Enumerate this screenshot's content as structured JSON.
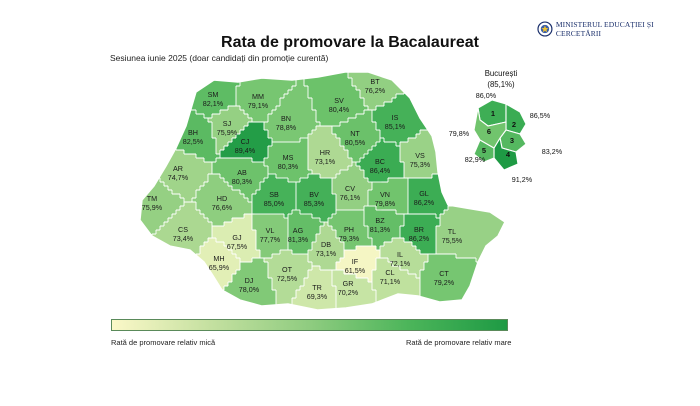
{
  "title": "Rata de promovare la Bacalaureat",
  "subtitle": "Sesiunea iunie 2025 (doar candidați din promoție curentă)",
  "logo": {
    "text": "MINISTERUL EDUCAȚIEI ȘI CERCETĂRII",
    "icon": "ministry-crest-icon"
  },
  "legend": {
    "low_label": "Rată de promovare relativ mică",
    "high_label": "Rată de promovare relativ mare",
    "low_color": "#fbf8c8",
    "high_color": "#1e9a44"
  },
  "counties": [
    {
      "code": "SM",
      "value": "82,1%"
    },
    {
      "code": "MM",
      "value": "79,1%"
    },
    {
      "code": "BT",
      "value": "76,2%"
    },
    {
      "code": "SV",
      "value": "80,4%"
    },
    {
      "code": "SJ",
      "value": "75,9%"
    },
    {
      "code": "BN",
      "value": "78,8%"
    },
    {
      "code": "IS",
      "value": "85,1%"
    },
    {
      "code": "BH",
      "value": "82,5%"
    },
    {
      "code": "CJ",
      "value": "89,4%"
    },
    {
      "code": "NT",
      "value": "80,5%"
    },
    {
      "code": "MS",
      "value": "80,3%"
    },
    {
      "code": "HR",
      "value": "73,1%"
    },
    {
      "code": "BC",
      "value": "86,4%"
    },
    {
      "code": "VS",
      "value": "75,3%"
    },
    {
      "code": "AR",
      "value": "74,7%"
    },
    {
      "code": "AB",
      "value": "80,3%"
    },
    {
      "code": "TM",
      "value": "75,9%"
    },
    {
      "code": "HD",
      "value": "76,6%"
    },
    {
      "code": "SB",
      "value": "85,0%"
    },
    {
      "code": "BV",
      "value": "85,3%"
    },
    {
      "code": "CV",
      "value": "76,1%"
    },
    {
      "code": "VN",
      "value": "79,8%"
    },
    {
      "code": "GL",
      "value": "86,2%"
    },
    {
      "code": "CS",
      "value": "73,4%"
    },
    {
      "code": "GJ",
      "value": "67,5%"
    },
    {
      "code": "VL",
      "value": "77,7%"
    },
    {
      "code": "AG",
      "value": "81,3%"
    },
    {
      "code": "DB",
      "value": "73,1%"
    },
    {
      "code": "PH",
      "value": "79,3%"
    },
    {
      "code": "BZ",
      "value": "81,3%"
    },
    {
      "code": "BR",
      "value": "86,2%"
    },
    {
      "code": "TL",
      "value": "75,5%"
    },
    {
      "code": "MH",
      "value": "65,9%"
    },
    {
      "code": "IF",
      "value": "61,5%"
    },
    {
      "code": "IL",
      "value": "72,1%"
    },
    {
      "code": "OT",
      "value": "72,5%"
    },
    {
      "code": "DJ",
      "value": "78,0%"
    },
    {
      "code": "TR",
      "value": "69,3%"
    },
    {
      "code": "GR",
      "value": "70,2%"
    },
    {
      "code": "CL",
      "value": "71,1%"
    },
    {
      "code": "CT",
      "value": "79,2%"
    }
  ],
  "bucuresti": {
    "title": "București",
    "total": "(85,1%)",
    "sectors": [
      {
        "num": "1",
        "value": "86,0%"
      },
      {
        "num": "2",
        "value": "86,5%"
      },
      {
        "num": "3",
        "value": "83,2%"
      },
      {
        "num": "4",
        "value": "91,2%"
      },
      {
        "num": "5",
        "value": "82,9%"
      },
      {
        "num": "6",
        "value": "79,8%"
      }
    ]
  }
}
